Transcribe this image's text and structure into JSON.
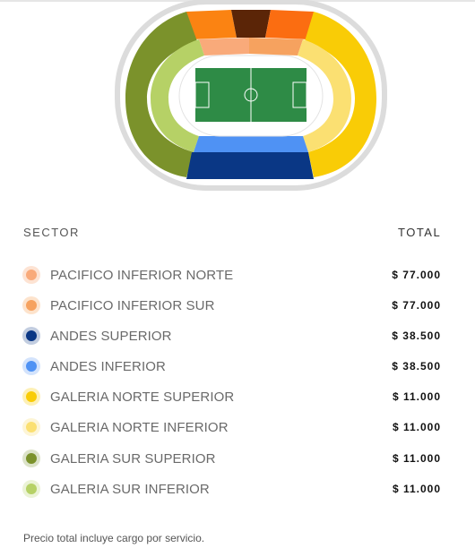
{
  "headers": {
    "sector": "SECTOR",
    "total": "TOTAL"
  },
  "sectors": [
    {
      "name": "PACIFICO INFERIOR NORTE",
      "price": "$ 77.000",
      "color": "#f9aa7a",
      "ring": "#fde3d3"
    },
    {
      "name": "PACIFICO INFERIOR SUR",
      "price": "$ 77.000",
      "color": "#f6a25f",
      "ring": "#fde3cc"
    },
    {
      "name": "ANDES SUPERIOR",
      "price": "$ 38.500",
      "color": "#0a3785",
      "ring": "#c2cde0"
    },
    {
      "name": "ANDES INFERIOR",
      "price": "$ 38.500",
      "color": "#4f92f4",
      "ring": "#d3e3fc"
    },
    {
      "name": "GALERIA NORTE SUPERIOR",
      "price": "$ 11.000",
      "color": "#f9cc06",
      "ring": "#fdf0b6"
    },
    {
      "name": "GALERIA NORTE INFERIOR",
      "price": "$ 11.000",
      "color": "#fbe072",
      "ring": "#fdf5d6"
    },
    {
      "name": "GALERIA SUR SUPERIOR",
      "price": "$ 11.000",
      "color": "#7b922b",
      "ring": "#dce3c9"
    },
    {
      "name": "GALERIA SUR INFERIOR",
      "price": "$ 11.000",
      "color": "#b6d166",
      "ring": "#ebf3d6"
    }
  ],
  "footnote": "Precio total incluye cargo por servicio.",
  "colors": {
    "pacifico_superior_left": "#fb8312",
    "pacifico_superior_center": "#5b2507",
    "pacifico_superior_right": "#fb6d11",
    "field": "#2e8b46",
    "track": "#ffffff",
    "stadium_outline": "#dcdcdc"
  }
}
